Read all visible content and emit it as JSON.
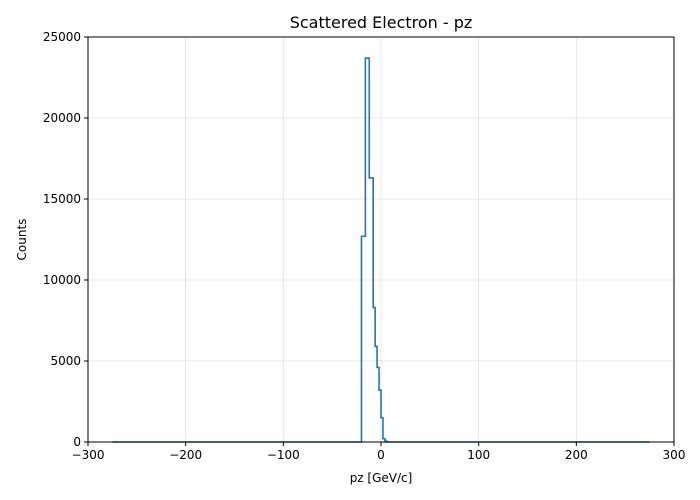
{
  "chart_data": {
    "type": "histogram",
    "title": "Scattered Electron - pz",
    "xlabel": "pz [GeV/c]",
    "ylabel": "Counts",
    "xlim": [
      -300,
      300
    ],
    "ylim": [
      0,
      25000
    ],
    "xticks": [
      -300,
      -200,
      -100,
      0,
      100,
      200,
      300
    ],
    "xtick_labels": [
      "−300",
      "−200",
      "−100",
      "0",
      "100",
      "200",
      "300"
    ],
    "yticks": [
      0,
      5000,
      10000,
      15000,
      20000,
      25000
    ],
    "ytick_labels": [
      "0",
      "5000",
      "10000",
      "15000",
      "20000",
      "25000"
    ],
    "grid": true,
    "line_color": "#1f77b4",
    "bin_edges": [
      -275,
      -20,
      -16,
      -12,
      -8,
      -6,
      -4,
      -2,
      0,
      2,
      4,
      6,
      275
    ],
    "counts": [
      0,
      12700,
      23700,
      16300,
      8300,
      5900,
      4600,
      3200,
      1500,
      200,
      50,
      0
    ]
  }
}
